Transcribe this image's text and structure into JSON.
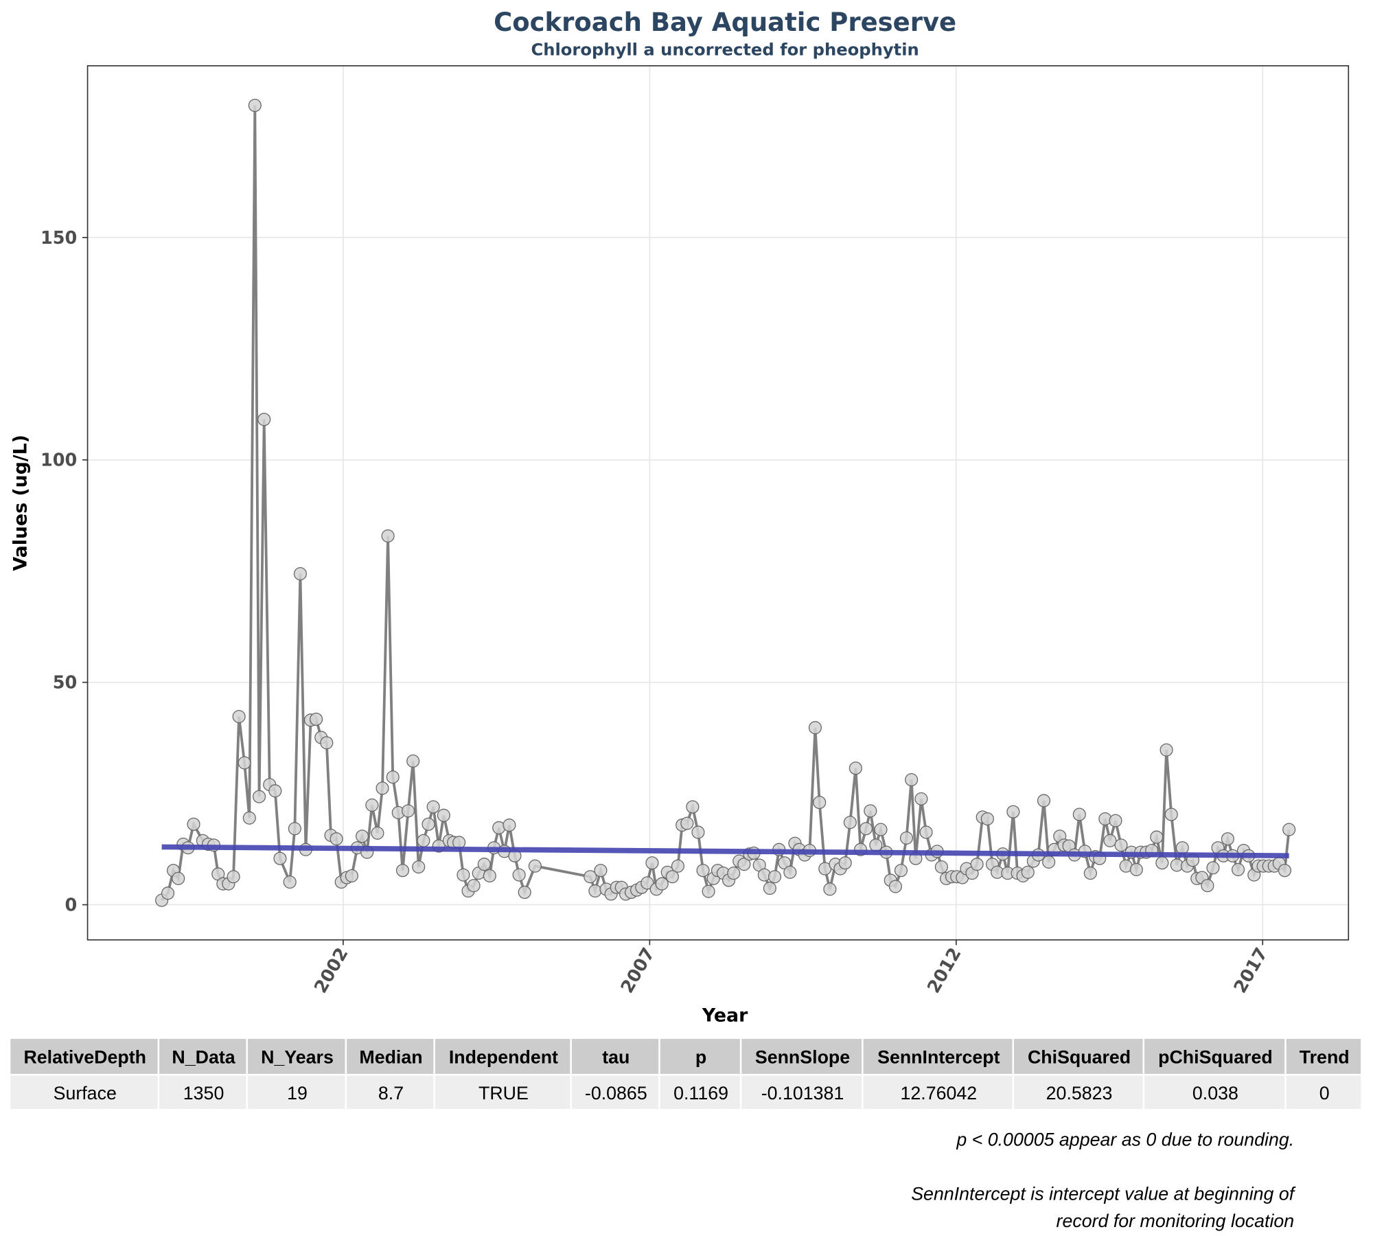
{
  "chart_data": {
    "type": "line",
    "title": "Cockroach Bay Aquatic Preserve",
    "subtitle": "Chlorophyll a uncorrected for pheophytin",
    "x_label": "Year",
    "y_label": "Values (ug/L)",
    "xlim": [
      1997.83,
      2018.4
    ],
    "xticks": [
      2002,
      2007,
      2012,
      2017
    ],
    "ylim": [
      -7.9,
      188.6
    ],
    "yticks": [
      0,
      50,
      100,
      150
    ],
    "grid": true,
    "color": "#808080",
    "marker_color": "#d3d3d3",
    "x": [
      1999.04,
      1999.14,
      1999.23,
      1999.31,
      1999.39,
      1999.47,
      1999.56,
      1999.71,
      1999.8,
      1999.89,
      1999.96,
      2000.04,
      2000.13,
      2000.21,
      2000.3,
      2000.39,
      2000.47,
      2000.56,
      2000.63,
      2000.71,
      2000.8,
      2000.89,
      2000.97,
      2001.13,
      2001.21,
      2001.3,
      2001.39,
      2001.47,
      2001.56,
      2001.64,
      2001.73,
      2001.8,
      2001.89,
      2001.97,
      2002.06,
      2002.14,
      2002.23,
      2002.31,
      2002.39,
      2002.47,
      2002.56,
      2002.64,
      2002.73,
      2002.81,
      2002.9,
      2002.97,
      2003.06,
      2003.14,
      2003.23,
      2003.31,
      2003.39,
      2003.47,
      2003.56,
      2003.64,
      2003.73,
      2003.8,
      2003.89,
      2003.96,
      2004.04,
      2004.13,
      2004.21,
      2004.3,
      2004.39,
      2004.46,
      2004.54,
      2004.63,
      2004.71,
      2004.8,
      2004.87,
      2004.96,
      2005.13,
      2006.03,
      2006.11,
      2006.2,
      2006.29,
      2006.37,
      2006.46,
      2006.54,
      2006.61,
      2006.7,
      2006.79,
      2006.87,
      2006.96,
      2007.04,
      2007.11,
      2007.2,
      2007.29,
      2007.37,
      2007.46,
      2007.53,
      2007.61,
      2007.7,
      2007.79,
      2007.87,
      2007.96,
      2008.04,
      2008.11,
      2008.2,
      2008.29,
      2008.37,
      2008.46,
      2008.54,
      2008.63,
      2008.7,
      2008.79,
      2008.87,
      2008.96,
      2009.04,
      2009.11,
      2009.2,
      2009.29,
      2009.37,
      2009.44,
      2009.53,
      2009.61,
      2009.7,
      2009.77,
      2009.86,
      2009.94,
      2010.03,
      2010.11,
      2010.19,
      2010.27,
      2010.36,
      2010.44,
      2010.53,
      2010.6,
      2010.69,
      2010.77,
      2010.86,
      2010.93,
      2011.01,
      2011.1,
      2011.19,
      2011.27,
      2011.34,
      2011.43,
      2011.51,
      2011.6,
      2011.69,
      2011.76,
      2011.84,
      2011.93,
      2012.01,
      2012.1,
      2012.17,
      2012.26,
      2012.34,
      2012.43,
      2012.51,
      2012.59,
      2012.67,
      2012.76,
      2012.84,
      2012.93,
      2013.0,
      2013.09,
      2013.17,
      2013.26,
      2013.34,
      2013.43,
      2013.51,
      2013.6,
      2013.69,
      2013.76,
      2013.84,
      2013.93,
      2014.01,
      2014.1,
      2014.19,
      2014.27,
      2014.34,
      2014.43,
      2014.51,
      2014.6,
      2014.69,
      2014.77,
      2014.86,
      2014.94,
      2015.01,
      2015.1,
      2015.19,
      2015.27,
      2015.36,
      2015.43,
      2015.51,
      2015.6,
      2015.69,
      2015.77,
      2015.86,
      2015.93,
      2016.01,
      2016.1,
      2016.19,
      2016.27,
      2016.36,
      2016.43,
      2016.51,
      2016.6,
      2016.69,
      2016.77,
      2016.86,
      2016.93,
      2017.01,
      2017.1,
      2017.19,
      2017.27,
      2017.36,
      2017.43
    ],
    "values": [
      1.0,
      2.6,
      7.7,
      5.9,
      13.6,
      12.8,
      18.1,
      14.4,
      13.6,
      13.4,
      6.9,
      4.7,
      4.7,
      6.3,
      42.3,
      31.9,
      19.5,
      179.7,
      24.3,
      109.1,
      27.0,
      25.6,
      10.4,
      5.1,
      17.1,
      74.4,
      12.4,
      41.5,
      41.7,
      37.6,
      36.4,
      15.6,
      14.8,
      5.1,
      6.1,
      6.5,
      12.8,
      15.4,
      11.8,
      22.4,
      16.1,
      26.2,
      82.9,
      28.7,
      20.7,
      7.7,
      21.1,
      32.3,
      8.5,
      14.4,
      18.1,
      22.0,
      13.2,
      20.1,
      14.4,
      14.0,
      14.0,
      6.7,
      3.1,
      4.3,
      7.1,
      9.1,
      6.5,
      12.8,
      17.3,
      12.0,
      17.9,
      11.0,
      6.7,
      2.8,
      8.7,
      6.3,
      3.1,
      7.7,
      3.5,
      2.4,
      3.9,
      3.9,
      2.4,
      2.8,
      3.3,
      3.9,
      4.9,
      9.4,
      3.5,
      4.7,
      7.3,
      6.3,
      8.7,
      17.9,
      18.3,
      22.0,
      16.3,
      7.7,
      3.0,
      5.9,
      7.7,
      7.1,
      5.5,
      7.1,
      9.8,
      9.1,
      11.4,
      11.6,
      8.9,
      6.7,
      3.7,
      6.3,
      12.4,
      9.4,
      7.3,
      13.8,
      12.4,
      11.2,
      12.2,
      39.8,
      23.0,
      8.1,
      3.5,
      9.1,
      8.1,
      9.4,
      18.5,
      30.7,
      12.4,
      17.1,
      21.1,
      13.4,
      16.9,
      11.8,
      5.5,
      4.1,
      7.7,
      15.0,
      28.1,
      10.4,
      23.8,
      16.3,
      11.2,
      12.0,
      8.5,
      5.9,
      6.3,
      6.3,
      6.1,
      8.1,
      7.1,
      9.1,
      19.7,
      19.3,
      9.1,
      7.3,
      11.4,
      7.1,
      20.9,
      7.1,
      6.5,
      7.3,
      9.8,
      11.2,
      23.4,
      9.6,
      12.4,
      15.4,
      13.4,
      13.2,
      11.2,
      20.3,
      12.0,
      7.1,
      10.8,
      10.4,
      19.3,
      14.4,
      18.9,
      13.4,
      8.7,
      11.8,
      7.9,
      11.8,
      11.8,
      12.2,
      15.2,
      9.4,
      34.8,
      20.3,
      8.9,
      12.8,
      8.7,
      10.0,
      5.9,
      6.1,
      4.3,
      8.3,
      12.8,
      11.0,
      14.8,
      11.0,
      7.9,
      12.2,
      11.0,
      6.7,
      8.7,
      8.7,
      8.7,
      8.7,
      9.3,
      7.7,
      16.9
    ],
    "trend": {
      "color": "#4444b0",
      "x": [
        1999.04,
        2017.43
      ],
      "values": [
        12.99,
        11.02
      ]
    }
  },
  "table": {
    "header": [
      "RelativeDepth",
      "N_Data",
      "N_Years",
      "Median",
      "Independent",
      "tau",
      "p",
      "SennSlope",
      "SennIntercept",
      "ChiSquared",
      "pChiSquared",
      "Trend"
    ],
    "rows": [
      [
        "Surface",
        1350,
        19,
        8.7,
        "TRUE",
        -0.0865,
        0.1169,
        -0.101381,
        12.76042,
        20.5823,
        0.038,
        0
      ]
    ]
  },
  "notes": [
    "p < 0.00005 appear as 0 due to rounding.",
    "SennIntercept is intercept value at beginning of",
    "record for monitoring location"
  ]
}
